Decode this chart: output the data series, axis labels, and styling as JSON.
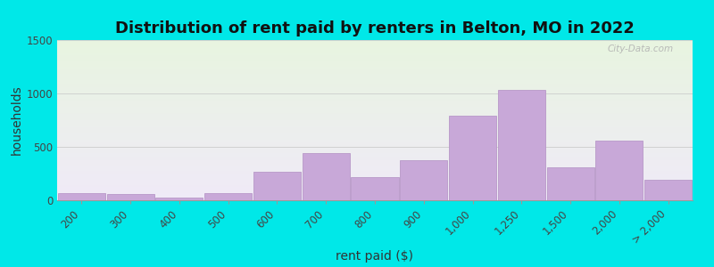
{
  "title": "Distribution of rent paid by renters in Belton, MO in 2022",
  "xlabel": "rent paid ($)",
  "ylabel": "households",
  "categories": [
    "200",
    "300",
    "400",
    "500",
    "600",
    "700",
    "800",
    "900",
    "1,000",
    "1,250",
    "1,500",
    "2,000",
    "> 2,000"
  ],
  "values": [
    65,
    55,
    25,
    65,
    270,
    440,
    220,
    375,
    790,
    1030,
    310,
    560,
    195
  ],
  "bar_color": "#c8a8d8",
  "bar_edge_color": "#b898c8",
  "ylim": [
    0,
    1500
  ],
  "yticks": [
    0,
    500,
    1000,
    1500
  ],
  "bg_outer": "#00e8e8",
  "bg_plot_top": "#e8f5e0",
  "bg_plot_bottom": "#f0eaf8",
  "title_fontsize": 13,
  "axis_label_fontsize": 10,
  "tick_fontsize": 8.5,
  "title_fontweight": "bold"
}
